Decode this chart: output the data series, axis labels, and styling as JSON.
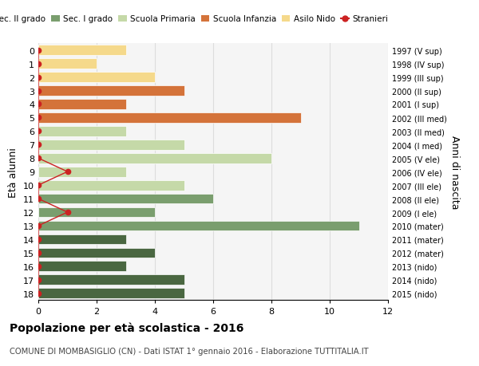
{
  "ages": [
    18,
    17,
    16,
    15,
    14,
    13,
    12,
    11,
    10,
    9,
    8,
    7,
    6,
    5,
    4,
    3,
    2,
    1,
    0
  ],
  "right_labels": [
    "1997 (V sup)",
    "1998 (IV sup)",
    "1999 (III sup)",
    "2000 (II sup)",
    "2001 (I sup)",
    "2002 (III med)",
    "2003 (II med)",
    "2004 (I med)",
    "2005 (V ele)",
    "2006 (IV ele)",
    "2007 (III ele)",
    "2008 (II ele)",
    "2009 (I ele)",
    "2010 (mater)",
    "2011 (mater)",
    "2012 (mater)",
    "2013 (nido)",
    "2014 (nido)",
    "2015 (nido)"
  ],
  "bars": [
    {
      "age": 18,
      "value": 5,
      "color": "#4a6741"
    },
    {
      "age": 17,
      "value": 5,
      "color": "#4a6741"
    },
    {
      "age": 16,
      "value": 3,
      "color": "#4a6741"
    },
    {
      "age": 15,
      "value": 4,
      "color": "#4a6741"
    },
    {
      "age": 14,
      "value": 3,
      "color": "#4a6741"
    },
    {
      "age": 13,
      "value": 11,
      "color": "#7a9e6e"
    },
    {
      "age": 12,
      "value": 4,
      "color": "#7a9e6e"
    },
    {
      "age": 11,
      "value": 6,
      "color": "#7a9e6e"
    },
    {
      "age": 10,
      "value": 5,
      "color": "#c5d9a8"
    },
    {
      "age": 9,
      "value": 3,
      "color": "#c5d9a8"
    },
    {
      "age": 8,
      "value": 8,
      "color": "#c5d9a8"
    },
    {
      "age": 7,
      "value": 5,
      "color": "#c5d9a8"
    },
    {
      "age": 6,
      "value": 3,
      "color": "#c5d9a8"
    },
    {
      "age": 5,
      "value": 9,
      "color": "#d4733a"
    },
    {
      "age": 4,
      "value": 3,
      "color": "#d4733a"
    },
    {
      "age": 3,
      "value": 5,
      "color": "#d4733a"
    },
    {
      "age": 2,
      "value": 4,
      "color": "#f5d98b"
    },
    {
      "age": 1,
      "value": 2,
      "color": "#f5d98b"
    },
    {
      "age": 0,
      "value": 3,
      "color": "#f5d98b"
    }
  ],
  "stranieri": [
    {
      "age": 18,
      "value": 0
    },
    {
      "age": 17,
      "value": 0
    },
    {
      "age": 16,
      "value": 0
    },
    {
      "age": 15,
      "value": 0
    },
    {
      "age": 14,
      "value": 0
    },
    {
      "age": 13,
      "value": 0
    },
    {
      "age": 12,
      "value": 1
    },
    {
      "age": 11,
      "value": 0
    },
    {
      "age": 10,
      "value": 0
    },
    {
      "age": 9,
      "value": 1
    },
    {
      "age": 8,
      "value": 0
    },
    {
      "age": 7,
      "value": 0
    },
    {
      "age": 6,
      "value": 0
    },
    {
      "age": 5,
      "value": 0
    },
    {
      "age": 4,
      "value": 0
    },
    {
      "age": 3,
      "value": 0
    },
    {
      "age": 2,
      "value": 0
    },
    {
      "age": 1,
      "value": 0
    },
    {
      "age": 0,
      "value": 0
    }
  ],
  "colors": {
    "sec2": "#4a6741",
    "sec1": "#7a9e6e",
    "primaria": "#c5d9a8",
    "infanzia": "#d4733a",
    "nido": "#f5d98b",
    "stranieri": "#cc2222",
    "grid": "#dddddd",
    "bg": "#f5f5f5"
  },
  "legend_labels": [
    "Sec. II grado",
    "Sec. I grado",
    "Scuola Primaria",
    "Scuola Infanzia",
    "Asilo Nido",
    "Stranieri"
  ],
  "ylabel_left": "Età alunni",
  "ylabel_right": "Anni di nascita",
  "title_bold": "Popolazione per età scolastica - 2016",
  "subtitle": "COMUNE DI MOMBASIGLIO (CN) - Dati ISTAT 1° gennaio 2016 - Elaborazione TUTTITALIA.IT",
  "xlim": [
    0,
    12
  ],
  "xticks": [
    0,
    2,
    4,
    6,
    8,
    10,
    12
  ]
}
